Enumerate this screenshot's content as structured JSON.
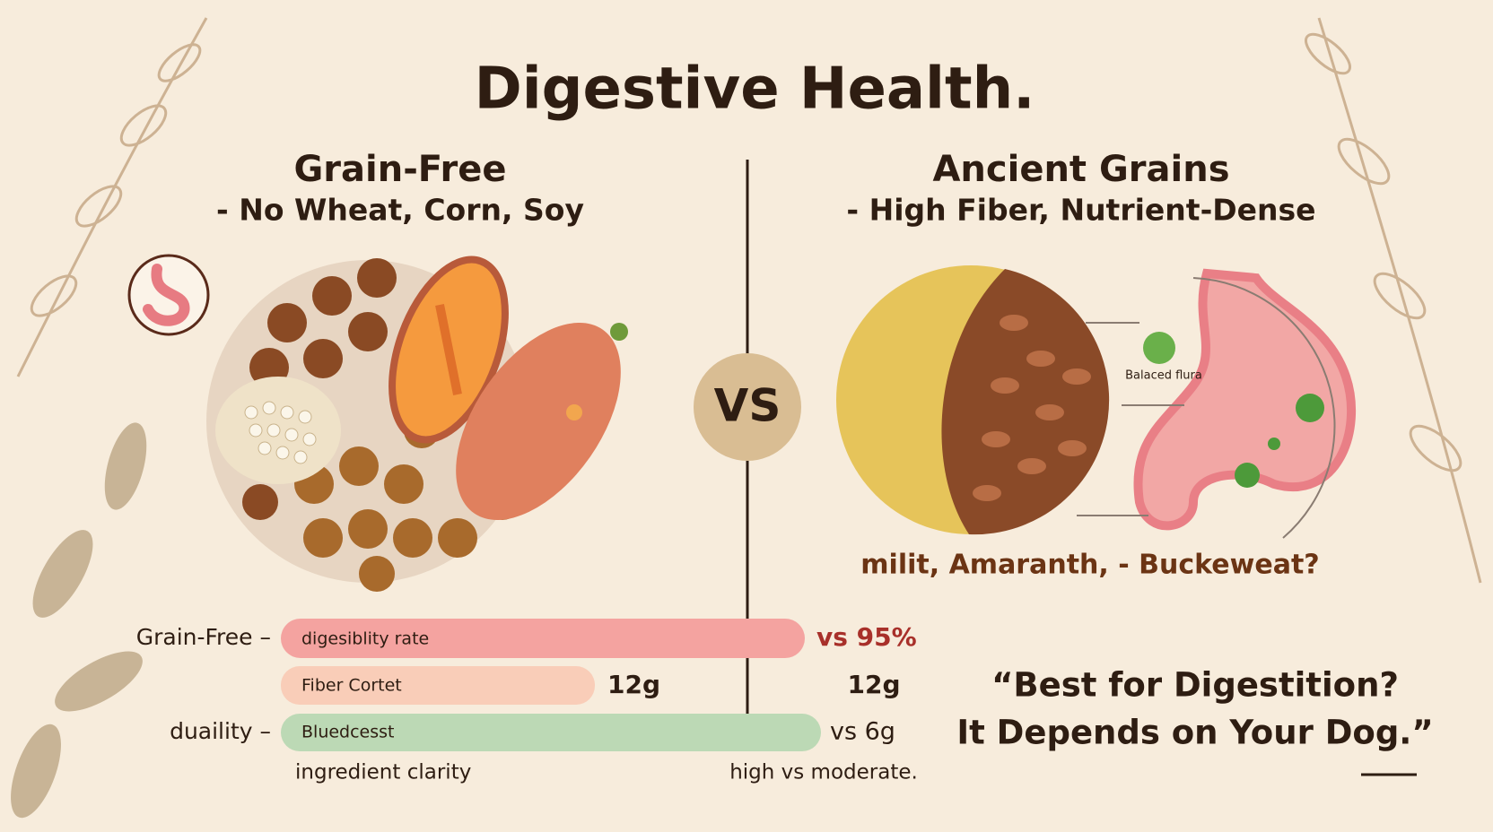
{
  "title": "Digestive Health.",
  "left": {
    "heading": "Grain-Free",
    "subheading": "- No Wheat, Corn, Soy"
  },
  "right": {
    "heading": "Ancient Grains",
    "subheading": "- High Fiber, Nutrient-Dense",
    "flora_label": "Balaced flura",
    "grains": "milit,  Amaranth,  -  Buckeweat?"
  },
  "vs": "VS",
  "rows": [
    {
      "label": "Grain-Free –",
      "bar_text": "digesiblity rate",
      "value": "vs 95%"
    },
    {
      "bar_text": "Fiber Cortet",
      "left_value": "12g",
      "value": "12g"
    },
    {
      "label": "duaility –",
      "bar_text": "Bluedcesst",
      "value": "vs 6g"
    },
    {
      "bar_text": "ingredient clarity",
      "value": "high vs moderate."
    }
  ],
  "quote": {
    "line1": "“Best for Digestition?",
    "line2": "It Depends on Your Dog.”"
  }
}
